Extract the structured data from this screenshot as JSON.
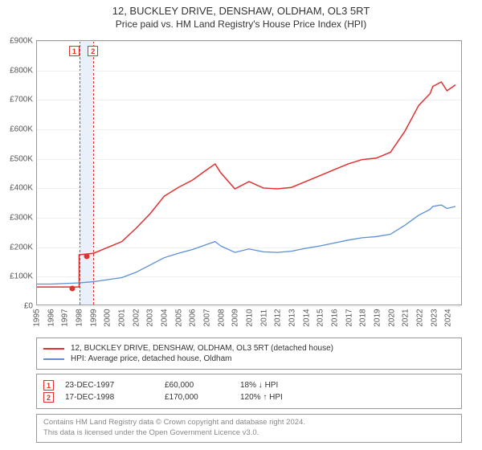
{
  "titles": {
    "main": "12, BUCKLEY DRIVE, DENSHAW, OLDHAM, OL3 5RT",
    "sub": "Price paid vs. HM Land Registry's House Price Index (HPI)"
  },
  "chart": {
    "type": "line",
    "background_color": "#ffffff",
    "grid_color": "#eeeeee",
    "axis_color": "#999999",
    "label_fontsize": 10,
    "x": {
      "min": 1995,
      "max": 2025,
      "step": 1,
      "ticks": [
        1995,
        1996,
        1997,
        1998,
        1999,
        2000,
        2001,
        2002,
        2003,
        2004,
        2005,
        2006,
        2007,
        2008,
        2009,
        2010,
        2011,
        2012,
        2013,
        2014,
        2015,
        2016,
        2017,
        2018,
        2019,
        2020,
        2021,
        2022,
        2023,
        2024
      ]
    },
    "y": {
      "min": 0,
      "max": 900000,
      "step": 100000,
      "ticks": [
        0,
        100000,
        200000,
        300000,
        400000,
        500000,
        600000,
        700000,
        800000,
        900000
      ],
      "prefix": "£",
      "suffix": "K",
      "divisor": 1000
    },
    "highlight_band": {
      "start": 1997.98,
      "end": 1998.96,
      "color": "#eaf0fa"
    },
    "vdash_color": "#e03030",
    "vdash_positions": [
      1997.98,
      1998.96
    ],
    "markers": [
      {
        "label": "1",
        "x": 1997.5,
        "y": 60000
      },
      {
        "label": "2",
        "x": 1998.5,
        "y": 170000
      }
    ],
    "marker_box_pos": [
      {
        "label": "1",
        "x": 1997.6
      },
      {
        "label": "2",
        "x": 1998.92
      }
    ],
    "series": [
      {
        "name": "12, BUCKLEY DRIVE, DENSHAW, OLDHAM, OL3 5RT (detached house)",
        "color": "#e03030",
        "line_width": 1.5,
        "data": [
          [
            1995,
            60000
          ],
          [
            1996,
            60000
          ],
          [
            1997,
            60000
          ],
          [
            1997.98,
            60000
          ],
          [
            1997.98,
            170000
          ],
          [
            1999,
            175000
          ],
          [
            2000,
            195000
          ],
          [
            2001,
            215000
          ],
          [
            2002,
            260000
          ],
          [
            2003,
            310000
          ],
          [
            2004,
            370000
          ],
          [
            2005,
            400000
          ],
          [
            2006,
            425000
          ],
          [
            2007,
            460000
          ],
          [
            2007.6,
            480000
          ],
          [
            2008,
            450000
          ],
          [
            2009,
            395000
          ],
          [
            2010,
            420000
          ],
          [
            2011,
            398000
          ],
          [
            2012,
            395000
          ],
          [
            2013,
            400000
          ],
          [
            2014,
            420000
          ],
          [
            2015,
            440000
          ],
          [
            2016,
            460000
          ],
          [
            2017,
            480000
          ],
          [
            2018,
            495000
          ],
          [
            2019,
            500000
          ],
          [
            2020,
            520000
          ],
          [
            2021,
            590000
          ],
          [
            2022,
            680000
          ],
          [
            2022.8,
            720000
          ],
          [
            2023,
            745000
          ],
          [
            2023.6,
            760000
          ],
          [
            2024,
            730000
          ],
          [
            2024.6,
            750000
          ]
        ]
      },
      {
        "name": "HPI: Average price, detached house, Oldham",
        "color": "#5b8fd6",
        "line_width": 1.3,
        "data": [
          [
            1995,
            70000
          ],
          [
            1996,
            70000
          ],
          [
            1997,
            72000
          ],
          [
            1998,
            74000
          ],
          [
            1999,
            78000
          ],
          [
            2000,
            85000
          ],
          [
            2001,
            92000
          ],
          [
            2002,
            110000
          ],
          [
            2003,
            135000
          ],
          [
            2004,
            160000
          ],
          [
            2005,
            175000
          ],
          [
            2006,
            188000
          ],
          [
            2007,
            205000
          ],
          [
            2007.6,
            215000
          ],
          [
            2008,
            200000
          ],
          [
            2009,
            178000
          ],
          [
            2010,
            190000
          ],
          [
            2011,
            180000
          ],
          [
            2012,
            178000
          ],
          [
            2013,
            182000
          ],
          [
            2014,
            192000
          ],
          [
            2015,
            200000
          ],
          [
            2016,
            210000
          ],
          [
            2017,
            220000
          ],
          [
            2018,
            228000
          ],
          [
            2019,
            232000
          ],
          [
            2020,
            240000
          ],
          [
            2021,
            270000
          ],
          [
            2022,
            305000
          ],
          [
            2022.8,
            325000
          ],
          [
            2023,
            335000
          ],
          [
            2023.6,
            340000
          ],
          [
            2024,
            328000
          ],
          [
            2024.6,
            335000
          ]
        ]
      }
    ]
  },
  "legend": {
    "items": [
      {
        "color": "#e03030",
        "label": "12, BUCKLEY DRIVE, DENSHAW, OLDHAM, OL3 5RT (detached house)"
      },
      {
        "color": "#5b8fd6",
        "label": "HPI: Average price, detached house, Oldham"
      }
    ]
  },
  "transactions": {
    "rows": [
      {
        "num": "1",
        "date": "23-DEC-1997",
        "price": "£60,000",
        "change": "18% ↓ HPI"
      },
      {
        "num": "2",
        "date": "17-DEC-1998",
        "price": "£170,000",
        "change": "120% ↑ HPI"
      }
    ]
  },
  "footer": {
    "line1": "Contains HM Land Registry data © Crown copyright and database right 2024.",
    "line2": "This data is licensed under the Open Government Licence v3.0."
  }
}
